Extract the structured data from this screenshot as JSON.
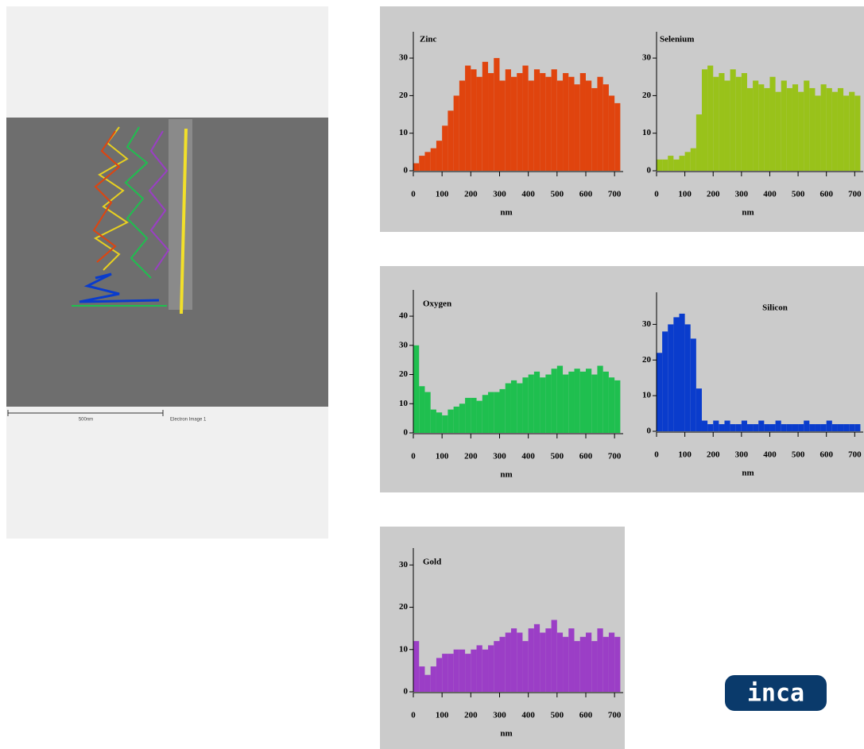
{
  "image": {
    "scale_bar": "500nm",
    "caption": "Electron Image 1"
  },
  "logo": "inca",
  "chart_data": [
    {
      "type": "histogram",
      "title": "Zinc",
      "x_label": "nm",
      "color": "#e0440e",
      "bins": [
        0,
        20,
        40,
        60,
        80,
        100,
        120,
        140,
        160,
        180,
        200,
        220,
        240,
        260,
        280,
        300,
        320,
        340,
        360,
        380,
        400,
        420,
        440,
        460,
        480,
        500,
        520,
        540,
        560,
        580,
        600,
        620,
        640,
        660,
        680,
        700,
        720
      ],
      "values": [
        2,
        4,
        5,
        6,
        8,
        12,
        16,
        20,
        24,
        28,
        27,
        25,
        29,
        26,
        30,
        24,
        27,
        25,
        26,
        28,
        24,
        27,
        26,
        25,
        27,
        24,
        26,
        25,
        23,
        26,
        24,
        22,
        25,
        23,
        20,
        18
      ],
      "xlim": [
        0,
        730
      ],
      "xticks": [
        0,
        100,
        200,
        300,
        400,
        500,
        600,
        700
      ],
      "ylim": [
        0,
        37
      ],
      "yticks": [
        0,
        10,
        20,
        30
      ]
    },
    {
      "type": "histogram",
      "title": "Selenium",
      "x_label": "nm",
      "color": "#99c21a",
      "bins": [
        0,
        20,
        40,
        60,
        80,
        100,
        120,
        140,
        160,
        180,
        200,
        220,
        240,
        260,
        280,
        300,
        320,
        340,
        360,
        380,
        400,
        420,
        440,
        460,
        480,
        500,
        520,
        540,
        560,
        580,
        600,
        620,
        640,
        660,
        680,
        700,
        720
      ],
      "values": [
        3,
        3,
        4,
        3,
        4,
        5,
        6,
        15,
        27,
        28,
        25,
        26,
        24,
        27,
        25,
        26,
        22,
        24,
        23,
        22,
        25,
        21,
        24,
        22,
        23,
        21,
        24,
        22,
        20,
        23,
        22,
        21,
        22,
        20,
        21,
        20
      ],
      "xlim": [
        0,
        730
      ],
      "xticks": [
        0,
        100,
        200,
        300,
        400,
        500,
        600,
        700
      ],
      "ylim": [
        0,
        37
      ],
      "yticks": [
        0,
        10,
        20,
        30
      ]
    },
    {
      "type": "histogram",
      "title": "Oxygen",
      "x_label": "nm",
      "color": "#1fbf4f",
      "bins": [
        0,
        20,
        40,
        60,
        80,
        100,
        120,
        140,
        160,
        180,
        200,
        220,
        240,
        260,
        280,
        300,
        320,
        340,
        360,
        380,
        400,
        420,
        440,
        460,
        480,
        500,
        520,
        540,
        560,
        580,
        600,
        620,
        640,
        660,
        680,
        700,
        720
      ],
      "values": [
        30,
        16,
        14,
        8,
        7,
        6,
        8,
        9,
        10,
        12,
        12,
        11,
        13,
        14,
        14,
        15,
        17,
        18,
        17,
        19,
        20,
        21,
        19,
        20,
        22,
        23,
        20,
        21,
        22,
        21,
        22,
        20,
        23,
        21,
        19,
        18
      ],
      "xlim": [
        0,
        730
      ],
      "xticks": [
        0,
        100,
        200,
        300,
        400,
        500,
        600,
        700
      ],
      "ylim": [
        0,
        49
      ],
      "yticks": [
        0,
        10,
        20,
        30,
        40
      ]
    },
    {
      "type": "histogram",
      "title": "Silicon",
      "x_label": "nm",
      "color": "#0a3ccc",
      "bins": [
        0,
        20,
        40,
        60,
        80,
        100,
        120,
        140,
        160,
        180,
        200,
        220,
        240,
        260,
        280,
        300,
        320,
        340,
        360,
        380,
        400,
        420,
        440,
        460,
        480,
        500,
        520,
        540,
        560,
        580,
        600,
        620,
        640,
        660,
        680,
        700,
        720
      ],
      "values": [
        22,
        28,
        30,
        32,
        33,
        30,
        26,
        12,
        3,
        2,
        3,
        2,
        3,
        2,
        2,
        3,
        2,
        2,
        3,
        2,
        2,
        3,
        2,
        2,
        2,
        2,
        3,
        2,
        2,
        2,
        3,
        2,
        2,
        2,
        2,
        2
      ],
      "xlim": [
        0,
        730
      ],
      "xticks": [
        0,
        100,
        200,
        300,
        400,
        500,
        600,
        700
      ],
      "ylim": [
        0,
        39
      ],
      "yticks": [
        0,
        10,
        20,
        30
      ]
    },
    {
      "type": "histogram",
      "title": "Gold",
      "x_label": "nm",
      "color": "#9b3ec6",
      "bins": [
        0,
        20,
        40,
        60,
        80,
        100,
        120,
        140,
        160,
        180,
        200,
        220,
        240,
        260,
        280,
        300,
        320,
        340,
        360,
        380,
        400,
        420,
        440,
        460,
        480,
        500,
        520,
        540,
        560,
        580,
        600,
        620,
        640,
        660,
        680,
        700,
        720
      ],
      "values": [
        12,
        6,
        4,
        6,
        8,
        9,
        9,
        10,
        10,
        9,
        10,
        11,
        10,
        11,
        12,
        13,
        14,
        15,
        14,
        12,
        15,
        16,
        14,
        15,
        17,
        14,
        13,
        15,
        12,
        13,
        14,
        12,
        15,
        13,
        14,
        13
      ],
      "xlim": [
        0,
        730
      ],
      "xticks": [
        0,
        100,
        200,
        300,
        400,
        500,
        600,
        700
      ],
      "ylim": [
        0,
        34
      ],
      "yticks": [
        0,
        10,
        20,
        30
      ]
    }
  ]
}
